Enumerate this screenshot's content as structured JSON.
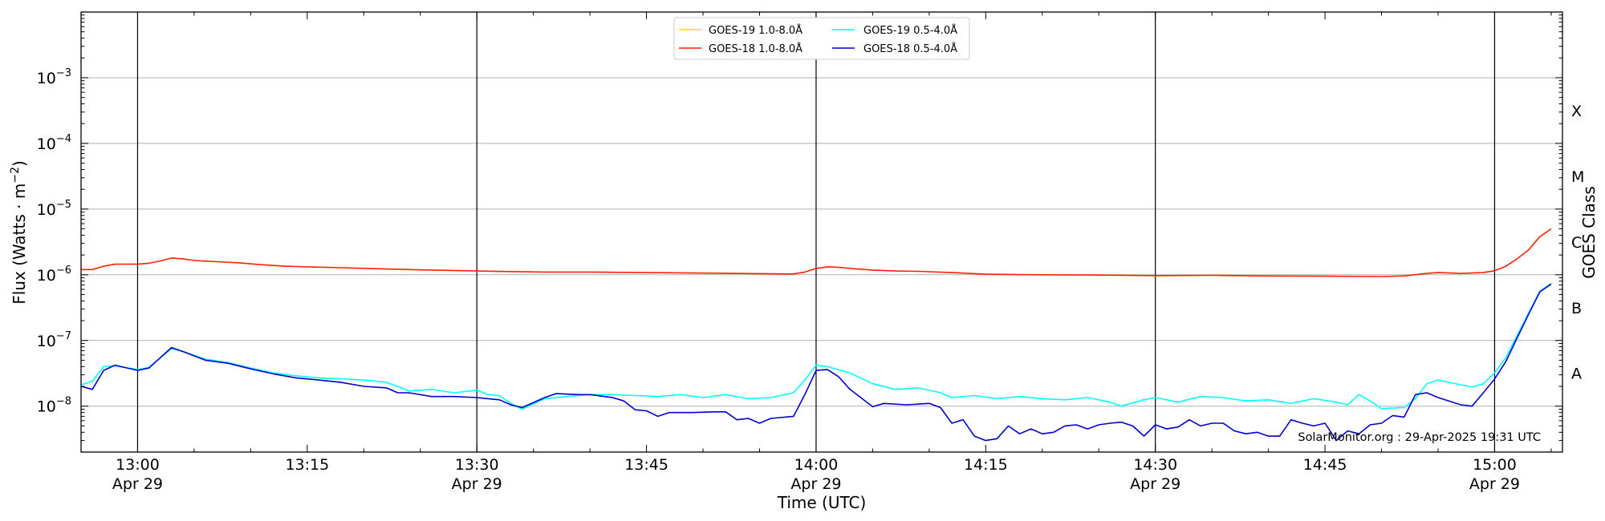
{
  "chart_data": {
    "type": "line",
    "xlabel": "Time (UTC)",
    "ylabel": "Flux (Watts · m",
    "ylabel_exp": "−2",
    "ylabel_close": ")",
    "right_label": "GOES Class",
    "xlim": [
      "12:55",
      "15:06"
    ],
    "ylim": [
      2e-09,
      0.01
    ],
    "yscale": "log",
    "grid": "horizontal at decades",
    "legend_position": "top-center",
    "x_ticks": [
      {
        "time": "13:00",
        "label": "13:00",
        "date": "Apr 29",
        "major": true
      },
      {
        "time": "13:15",
        "label": "13:15",
        "date": "",
        "major": false
      },
      {
        "time": "13:30",
        "label": "13:30",
        "date": "Apr 29",
        "major": true
      },
      {
        "time": "13:45",
        "label": "13:45",
        "date": "",
        "major": false
      },
      {
        "time": "14:00",
        "label": "14:00",
        "date": "Apr 29",
        "major": true
      },
      {
        "time": "14:15",
        "label": "14:15",
        "date": "",
        "major": false
      },
      {
        "time": "14:30",
        "label": "14:30",
        "date": "Apr 29",
        "major": true
      },
      {
        "time": "14:45",
        "label": "14:45",
        "date": "",
        "major": false
      },
      {
        "time": "15:00",
        "label": "15:00",
        "date": "Apr 29",
        "major": true
      }
    ],
    "y_ticks": [
      {
        "value": 0.001,
        "base": "10",
        "exp": "−3"
      },
      {
        "value": 0.0001,
        "base": "10",
        "exp": "−4"
      },
      {
        "value": 1e-05,
        "base": "10",
        "exp": "−5"
      },
      {
        "value": 1e-06,
        "base": "10",
        "exp": "−6"
      },
      {
        "value": 1e-07,
        "base": "10",
        "exp": "−7"
      },
      {
        "value": 1e-08,
        "base": "10",
        "exp": "−8"
      }
    ],
    "classes": [
      {
        "label": "X",
        "low": 0.0001
      },
      {
        "label": "M",
        "low": 1e-05
      },
      {
        "label": "C",
        "low": 1e-06
      },
      {
        "label": "B",
        "low": 1e-07
      },
      {
        "label": "A",
        "low": 1e-08
      }
    ],
    "series": [
      {
        "name": "GOES-19 1.0-8.0Å",
        "color": "#ffd700",
        "points": []
      },
      {
        "name": "GOES-18 1.0-8.0Å",
        "color": "#ff2000",
        "points": [
          [
            "12:55",
            1.2e-06
          ],
          [
            "12:56",
            1.2e-06
          ],
          [
            "12:57",
            1.35e-06
          ],
          [
            "12:58",
            1.45e-06
          ],
          [
            "13:00",
            1.45e-06
          ],
          [
            "13:01",
            1.5e-06
          ],
          [
            "13:02",
            1.62e-06
          ],
          [
            "13:03",
            1.8e-06
          ],
          [
            "13:04",
            1.75e-06
          ],
          [
            "13:05",
            1.65e-06
          ],
          [
            "13:07",
            1.58e-06
          ],
          [
            "13:09",
            1.52e-06
          ],
          [
            "13:11",
            1.42e-06
          ],
          [
            "13:13",
            1.35e-06
          ],
          [
            "13:15",
            1.32e-06
          ],
          [
            "13:18",
            1.28e-06
          ],
          [
            "13:21",
            1.24e-06
          ],
          [
            "13:24",
            1.2e-06
          ],
          [
            "13:27",
            1.17e-06
          ],
          [
            "13:30",
            1.14e-06
          ],
          [
            "13:33",
            1.12e-06
          ],
          [
            "13:36",
            1.1e-06
          ],
          [
            "13:40",
            1.1e-06
          ],
          [
            "13:45",
            1.08e-06
          ],
          [
            "13:50",
            1.06e-06
          ],
          [
            "13:55",
            1.04e-06
          ],
          [
            "13:58",
            1.03e-06
          ],
          [
            "13:59",
            1.1e-06
          ],
          [
            "14:00",
            1.25e-06
          ],
          [
            "14:01",
            1.32e-06
          ],
          [
            "14:02",
            1.3e-06
          ],
          [
            "14:03",
            1.25e-06
          ],
          [
            "14:05",
            1.18e-06
          ],
          [
            "14:07",
            1.14e-06
          ],
          [
            "14:09",
            1.13e-06
          ],
          [
            "14:12",
            1.08e-06
          ],
          [
            "14:15",
            1.02e-06
          ],
          [
            "14:20",
            1e-06
          ],
          [
            "14:25",
            9.9e-07
          ],
          [
            "14:30",
            9.7e-07
          ],
          [
            "14:35",
            9.8e-07
          ],
          [
            "14:40",
            9.6e-07
          ],
          [
            "14:45",
            9.5e-07
          ],
          [
            "14:50",
            9.4e-07
          ],
          [
            "14:52",
            9.6e-07
          ],
          [
            "14:54",
            1.05e-06
          ],
          [
            "14:55",
            1.08e-06
          ],
          [
            "14:57",
            1.05e-06
          ],
          [
            "14:59",
            1.08e-06
          ],
          [
            "15:00",
            1.15e-06
          ],
          [
            "15:01",
            1.35e-06
          ],
          [
            "15:02",
            1.75e-06
          ],
          [
            "15:03",
            2.4e-06
          ],
          [
            "15:04",
            3.8e-06
          ],
          [
            "15:05",
            5e-06
          ]
        ]
      },
      {
        "name": "GOES-19 0.5-4.0Å",
        "color": "#00ffff",
        "points": [
          [
            "12:55",
            2.1e-08
          ],
          [
            "12:56",
            2.4e-08
          ],
          [
            "12:57",
            4e-08
          ],
          [
            "12:58",
            4.1e-08
          ],
          [
            "13:00",
            3.6e-08
          ],
          [
            "13:01",
            3.9e-08
          ],
          [
            "13:03",
            7.5e-08
          ],
          [
            "13:04",
            6.8e-08
          ],
          [
            "13:06",
            5.2e-08
          ],
          [
            "13:08",
            4.6e-08
          ],
          [
            "13:10",
            3.8e-08
          ],
          [
            "13:12",
            3.2e-08
          ],
          [
            "13:14",
            2.9e-08
          ],
          [
            "13:16",
            2.7e-08
          ],
          [
            "13:18",
            2.6e-08
          ],
          [
            "13:20",
            2.5e-08
          ],
          [
            "13:22",
            2.3e-08
          ],
          [
            "13:23",
            2e-08
          ],
          [
            "13:24",
            1.7e-08
          ],
          [
            "13:26",
            1.8e-08
          ],
          [
            "13:28",
            1.6e-08
          ],
          [
            "13:30",
            1.75e-08
          ],
          [
            "13:31",
            1.5e-08
          ],
          [
            "13:32",
            1.45e-08
          ],
          [
            "13:33",
            1.1e-08
          ],
          [
            "13:34",
            9e-09
          ],
          [
            "13:36",
            1.3e-08
          ],
          [
            "13:38",
            1.4e-08
          ],
          [
            "13:40",
            1.5e-08
          ],
          [
            "13:42",
            1.5e-08
          ],
          [
            "13:44",
            1.45e-08
          ],
          [
            "13:46",
            1.4e-08
          ],
          [
            "13:48",
            1.5e-08
          ],
          [
            "13:50",
            1.35e-08
          ],
          [
            "13:52",
            1.5e-08
          ],
          [
            "13:54",
            1.3e-08
          ],
          [
            "13:56",
            1.35e-08
          ],
          [
            "13:58",
            1.6e-08
          ],
          [
            "13:59",
            2.5e-08
          ],
          [
            "14:00",
            4.2e-08
          ],
          [
            "14:01",
            4e-08
          ],
          [
            "14:03",
            3.2e-08
          ],
          [
            "14:05",
            2.2e-08
          ],
          [
            "14:07",
            1.8e-08
          ],
          [
            "14:09",
            1.9e-08
          ],
          [
            "14:11",
            1.6e-08
          ],
          [
            "14:12",
            1.35e-08
          ],
          [
            "14:14",
            1.45e-08
          ],
          [
            "14:16",
            1.3e-08
          ],
          [
            "14:18",
            1.4e-08
          ],
          [
            "14:20",
            1.3e-08
          ],
          [
            "14:22",
            1.25e-08
          ],
          [
            "14:24",
            1.35e-08
          ],
          [
            "14:26",
            1.15e-08
          ],
          [
            "14:27",
            1e-08
          ],
          [
            "14:29",
            1.25e-08
          ],
          [
            "14:30",
            1.35e-08
          ],
          [
            "14:32",
            1.15e-08
          ],
          [
            "14:34",
            1.4e-08
          ],
          [
            "14:36",
            1.35e-08
          ],
          [
            "14:38",
            1.2e-08
          ],
          [
            "14:40",
            1.25e-08
          ],
          [
            "14:42",
            1.1e-08
          ],
          [
            "14:44",
            1.3e-08
          ],
          [
            "14:46",
            1.15e-08
          ],
          [
            "14:47",
            1.05e-08
          ],
          [
            "14:48",
            1.5e-08
          ],
          [
            "14:49",
            1.2e-08
          ],
          [
            "14:50",
            9.2e-09
          ],
          [
            "14:52",
            9.5e-09
          ],
          [
            "14:53",
            1.3e-08
          ],
          [
            "14:54",
            2.2e-08
          ],
          [
            "14:55",
            2.5e-08
          ],
          [
            "14:56",
            2.3e-08
          ],
          [
            "14:58",
            1.95e-08
          ],
          [
            "14:59",
            2.2e-08
          ],
          [
            "15:00",
            3.2e-08
          ],
          [
            "15:01",
            5.5e-08
          ],
          [
            "15:02",
            1.2e-07
          ],
          [
            "15:03",
            2.6e-07
          ],
          [
            "15:04",
            5.6e-07
          ],
          [
            "15:05",
            7.4e-07
          ]
        ]
      },
      {
        "name": "GOES-18 0.5-4.0Å",
        "color": "#0000cc",
        "points": [
          [
            "12:55",
            2e-08
          ],
          [
            "12:56",
            1.8e-08
          ],
          [
            "12:57",
            3.5e-08
          ],
          [
            "12:58",
            4.2e-08
          ],
          [
            "13:00",
            3.5e-08
          ],
          [
            "13:01",
            3.8e-08
          ],
          [
            "13:03",
            7.8e-08
          ],
          [
            "13:04",
            6.8e-08
          ],
          [
            "13:06",
            5e-08
          ],
          [
            "13:08",
            4.5e-08
          ],
          [
            "13:10",
            3.7e-08
          ],
          [
            "13:12",
            3.1e-08
          ],
          [
            "13:14",
            2.7e-08
          ],
          [
            "13:16",
            2.5e-08
          ],
          [
            "13:18",
            2.3e-08
          ],
          [
            "13:20",
            2e-08
          ],
          [
            "13:22",
            1.9e-08
          ],
          [
            "13:23",
            1.6e-08
          ],
          [
            "13:24",
            1.6e-08
          ],
          [
            "13:26",
            1.4e-08
          ],
          [
            "13:28",
            1.4e-08
          ],
          [
            "13:30",
            1.35e-08
          ],
          [
            "13:31",
            1.3e-08
          ],
          [
            "13:32",
            1.25e-08
          ],
          [
            "13:33",
            1.05e-08
          ],
          [
            "13:34",
            9.5e-09
          ],
          [
            "13:36",
            1.35e-08
          ],
          [
            "13:37",
            1.55e-08
          ],
          [
            "13:39",
            1.5e-08
          ],
          [
            "13:40",
            1.5e-08
          ],
          [
            "13:42",
            1.35e-08
          ],
          [
            "13:43",
            1.2e-08
          ],
          [
            "13:44",
            8.8e-09
          ],
          [
            "13:45",
            8.5e-09
          ],
          [
            "13:46",
            7e-09
          ],
          [
            "13:47",
            8e-09
          ],
          [
            "13:49",
            8e-09
          ],
          [
            "13:51",
            8.2e-09
          ],
          [
            "13:52",
            8.2e-09
          ],
          [
            "13:53",
            6.2e-09
          ],
          [
            "13:54",
            6.5e-09
          ],
          [
            "13:55",
            5.5e-09
          ],
          [
            "13:56",
            6.5e-09
          ],
          [
            "13:58",
            7e-09
          ],
          [
            "13:59",
            1.5e-08
          ],
          [
            "14:00",
            3.5e-08
          ],
          [
            "14:01",
            3.6e-08
          ],
          [
            "14:02",
            2.8e-08
          ],
          [
            "14:03",
            1.8e-08
          ],
          [
            "14:05",
            9.8e-09
          ],
          [
            "14:06",
            1.1e-08
          ],
          [
            "14:08",
            1.05e-08
          ],
          [
            "14:10",
            1.1e-08
          ],
          [
            "14:11",
            9.5e-09
          ],
          [
            "14:12",
            5.5e-09
          ],
          [
            "14:13",
            6.2e-09
          ],
          [
            "14:14",
            3.5e-09
          ],
          [
            "14:15",
            3e-09
          ],
          [
            "14:16",
            3.2e-09
          ],
          [
            "14:17",
            5e-09
          ],
          [
            "14:18",
            3.8e-09
          ],
          [
            "14:19",
            4.5e-09
          ],
          [
            "14:20",
            3.8e-09
          ],
          [
            "14:21",
            4e-09
          ],
          [
            "14:22",
            5e-09
          ],
          [
            "14:23",
            5.2e-09
          ],
          [
            "14:24",
            4.5e-09
          ],
          [
            "14:25",
            5.2e-09
          ],
          [
            "14:26",
            5.5e-09
          ],
          [
            "14:27",
            5.7e-09
          ],
          [
            "14:28",
            5e-09
          ],
          [
            "14:29",
            3.5e-09
          ],
          [
            "14:30",
            5.2e-09
          ],
          [
            "14:31",
            4.5e-09
          ],
          [
            "14:32",
            4.8e-09
          ],
          [
            "14:33",
            6.2e-09
          ],
          [
            "14:34",
            5e-09
          ],
          [
            "14:35",
            5.5e-09
          ],
          [
            "14:36",
            5.5e-09
          ],
          [
            "14:37",
            4.2e-09
          ],
          [
            "14:38",
            3.8e-09
          ],
          [
            "14:39",
            4e-09
          ],
          [
            "14:40",
            3.5e-09
          ],
          [
            "14:41",
            3.5e-09
          ],
          [
            "14:42",
            6.2e-09
          ],
          [
            "14:43",
            5.5e-09
          ],
          [
            "14:44",
            5e-09
          ],
          [
            "14:45",
            5.5e-09
          ],
          [
            "14:46",
            3e-09
          ],
          [
            "14:47",
            4.2e-09
          ],
          [
            "14:48",
            3.8e-09
          ],
          [
            "14:49",
            5.2e-09
          ],
          [
            "14:50",
            5.5e-09
          ],
          [
            "14:51",
            7.2e-09
          ],
          [
            "14:52",
            6.8e-09
          ],
          [
            "14:53",
            1.5e-08
          ],
          [
            "14:54",
            1.6e-08
          ],
          [
            "14:55",
            1.35e-08
          ],
          [
            "14:57",
            1.05e-08
          ],
          [
            "14:58",
            1e-08
          ],
          [
            "14:59",
            1.6e-08
          ],
          [
            "15:00",
            2.6e-08
          ],
          [
            "15:01",
            4.8e-08
          ],
          [
            "15:02",
            1.1e-07
          ],
          [
            "15:03",
            2.5e-07
          ],
          [
            "15:04",
            5.5e-07
          ],
          [
            "15:05",
            7.2e-07
          ]
        ]
      }
    ],
    "credit": "SolarMonitor.org : 29-Apr-2025 19:31 UTC"
  }
}
